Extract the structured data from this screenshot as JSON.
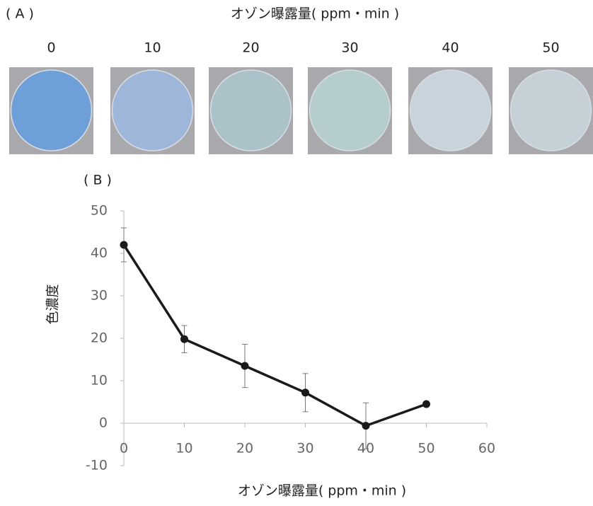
{
  "panel_a": {
    "label": "( A )",
    "title": "オゾン曝露量( ppm・min )",
    "samples": [
      {
        "label": "0",
        "color": "#6f9fd9"
      },
      {
        "label": "10",
        "color": "#9db6d9"
      },
      {
        "label": "20",
        "color": "#aac2c8"
      },
      {
        "label": "30",
        "color": "#b5cdcc"
      },
      {
        "label": "40",
        "color": "#c9d3db"
      },
      {
        "label": "50",
        "color": "#c6d1d7"
      }
    ]
  },
  "chart_data": {
    "type": "line",
    "label": "( B )",
    "xlabel": "オゾン曝露量( ppm・min )",
    "ylabel": "色濃度",
    "x": [
      0,
      10,
      20,
      30,
      40,
      50
    ],
    "values": [
      42,
      19.8,
      13.5,
      7.2,
      -0.6,
      4.5
    ],
    "errors": [
      4,
      3.2,
      5.1,
      4.5,
      5.4,
      null
    ],
    "color": "#1a1a1a",
    "xlim": [
      0,
      60
    ],
    "xticks": [
      0,
      10,
      20,
      30,
      40,
      50,
      60
    ],
    "ylim": [
      -10,
      50
    ],
    "yticks": [
      -10,
      0,
      10,
      20,
      30,
      40,
      50
    ]
  }
}
